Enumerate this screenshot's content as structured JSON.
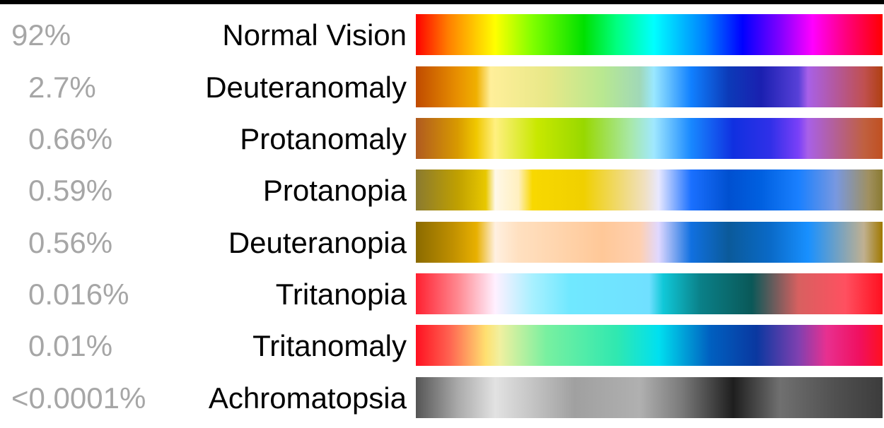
{
  "rows": [
    {
      "prevalence": "92%",
      "label": "Normal Vision",
      "gradient": [
        "#ff0000 0%",
        "#ff8000 7%",
        "#ffff00 17%",
        "#80ff00 25%",
        "#00e000 36%",
        "#00ff80 43%",
        "#00ffff 51%",
        "#0080ff 62%",
        "#0000ff 70%",
        "#8000ff 78%",
        "#ff00ff 85%",
        "#ff0080 92%",
        "#ff0000 100%"
      ]
    },
    {
      "prevalence": "2.7%",
      "label": "Deuteranomaly",
      "gradient": [
        "#c04a00 0%",
        "#e89000 9%",
        "#f0b000 13%",
        "#ffef9a 16%",
        "#e8e888 28%",
        "#b8e890 40%",
        "#a0d8b8 48%",
        "#9ae8ff 51%",
        "#1080ff 59%",
        "#0c3ab8 67%",
        "#1a20b0 74%",
        "#5840d8 82%",
        "#a860e8 84%",
        "#c05050 96%",
        "#b04010 100%"
      ]
    },
    {
      "prevalence": "0.66%",
      "label": "Protanomaly",
      "gradient": [
        "#b05a20 0%",
        "#d89a00 9%",
        "#f0c800 13%",
        "#fff080 17%",
        "#c8e800 26%",
        "#98d800 36%",
        "#a8e8a8 46%",
        "#a0e8ff 51%",
        "#1888ff 59%",
        "#1030e0 68%",
        "#3030e8 76%",
        "#7a40f8 82%",
        "#a860e8 84%",
        "#c06040 96%",
        "#c05020 100%"
      ]
    },
    {
      "prevalence": "0.59%",
      "label": "Protanopia",
      "gradient": [
        "#8a7a30 0%",
        "#c0a000 9%",
        "#e8c800 15%",
        "#fff8e8 17%",
        "#fff0c0 22%",
        "#f8d800 25%",
        "#f0d000 36%",
        "#f0e0c0 49%",
        "#e8e8ff 52%",
        "#1a70ff 59%",
        "#0050d0 67%",
        "#0060e0 74%",
        "#1a80ff 82%",
        "#7898e0 90%",
        "#a09060 97%",
        "#8a7a30 100%"
      ]
    },
    {
      "prevalence": "0.56%",
      "label": "Deuteranopia",
      "gradient": [
        "#8a6a00 0%",
        "#c09000 8%",
        "#e8b000 13%",
        "#fff0e0 17%",
        "#ffe0c0 22%",
        "#ffc898 40%",
        "#ffd0b0 48%",
        "#e0d8ff 52%",
        "#1070e0 59%",
        "#0b5a9a 67%",
        "#0a6ac8 76%",
        "#1890ff 84%",
        "#c0b090 96%",
        "#a07800 100%"
      ]
    },
    {
      "prevalence": "0.016%",
      "label": "Tritanopia",
      "gradient": [
        "#ff2030 0%",
        "#ff8890 9%",
        "#fff0ff 17%",
        "#a8f0ff 25%",
        "#70e8ff 33%",
        "#70e0ff 50%",
        "#10c8d8 53%",
        "#0a8088 61%",
        "#0a5858 72%",
        "#d86060 82%",
        "#ff5060 92%",
        "#ff1020 100%"
      ]
    },
    {
      "prevalence": "0.01%",
      "label": "Tritanomaly",
      "gradient": [
        "#ff1020 0%",
        "#ff6050 7%",
        "#ffe070 15%",
        "#f0f0a0 18%",
        "#78f0a0 28%",
        "#30e8b0 43%",
        "#00e0f0 52%",
        "#0060c0 63%",
        "#0a38a0 73%",
        "#8040b0 82%",
        "#e83090 88%",
        "#f01060 95%",
        "#ff1020 100%"
      ]
    },
    {
      "prevalence": "<0.0001%",
      "label": "Achromatopsia",
      "gradient": [
        "#555555 0%",
        "#aaaaaa 9%",
        "#e2e2e2 17%",
        "#c8c8c8 24%",
        "#a0a0a0 34%",
        "#b0b0b0 48%",
        "#7a7a7a 57%",
        "#404040 64%",
        "#1e1e1e 68%",
        "#707070 78%",
        "#505050 90%",
        "#3c3c3c 100%"
      ]
    }
  ]
}
